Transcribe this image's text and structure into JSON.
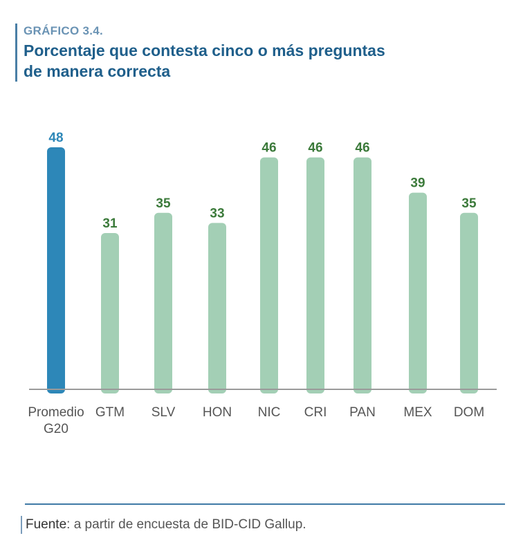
{
  "header": {
    "kicker": "GRÁFICO 3.4.",
    "title_line1": "Porcentaje que contesta cinco o más preguntas",
    "title_line2": "de manera correcta"
  },
  "colors": {
    "highlight": "#2d87b8",
    "bar": "#a3cfb5",
    "highlight_label": "#2d87b8",
    "bar_label": "#3b7a3a",
    "axis": "#9a9a9a"
  },
  "chart_data": {
    "type": "bar",
    "title": "Porcentaje que contesta cinco o más preguntas de manera correcta",
    "categories": [
      [
        "Promedio",
        "G20"
      ],
      [
        "GTM"
      ],
      [
        "SLV"
      ],
      [
        "HON"
      ],
      [
        "NIC"
      ],
      [
        "CRI"
      ],
      [
        "PAN"
      ],
      [
        "MEX"
      ],
      [
        "DOM"
      ]
    ],
    "values": [
      48,
      31,
      35,
      33,
      46,
      46,
      46,
      39,
      35
    ],
    "highlight_index": 0,
    "ylim": [
      0,
      48
    ],
    "xlabel": "",
    "ylabel": "",
    "grid": false
  },
  "footer": {
    "source_label": "Fuente",
    "source_text": ": a partir de encuesta de BID-CID Gallup."
  }
}
